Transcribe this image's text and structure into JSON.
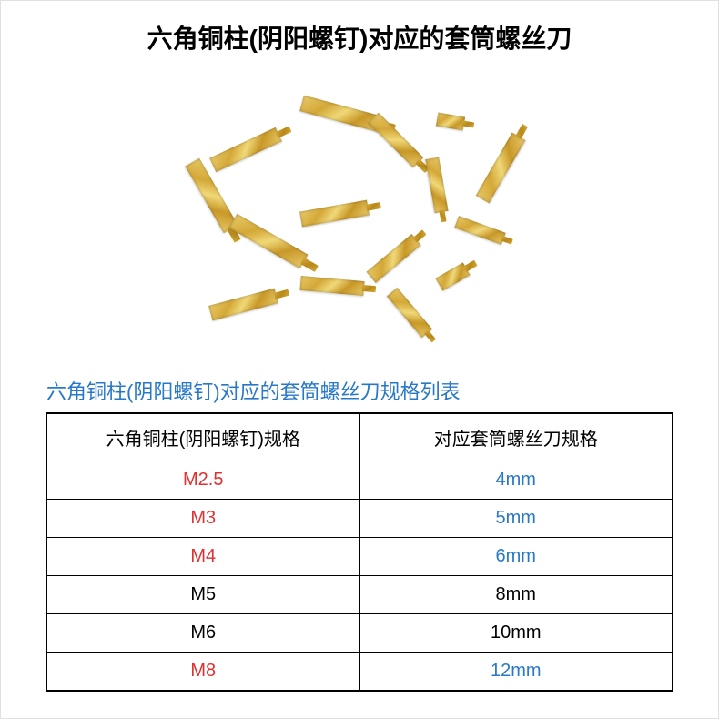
{
  "title": "六角铜柱(阴阳螺钉)对应的套筒螺丝刀",
  "subtitle": "六角铜柱(阴阳螺钉)对应的套筒螺丝刀规格列表",
  "colors": {
    "title_color": "#000000",
    "subtitle_color": "#2878c8",
    "red_text": "#e03030",
    "blue_text": "#2878c8",
    "black_text": "#000000",
    "border_color": "#000000",
    "brass_light": "#f0d878",
    "brass_dark": "#c89828"
  },
  "table": {
    "headers": [
      "六角铜柱(阴阳螺钉)规格",
      "对应套筒螺丝刀规格"
    ],
    "rows": [
      {
        "spec": "M2.5",
        "spec_color": "#e03030",
        "driver": "4mm",
        "driver_color": "#2878c8"
      },
      {
        "spec": "M3",
        "spec_color": "#e03030",
        "driver": "5mm",
        "driver_color": "#2878c8"
      },
      {
        "spec": "M4",
        "spec_color": "#e03030",
        "driver": "6mm",
        "driver_color": "#2878c8"
      },
      {
        "spec": "M5",
        "spec_color": "#000000",
        "driver": "8mm",
        "driver_color": "#000000"
      },
      {
        "spec": "M6",
        "spec_color": "#000000",
        "driver": "10mm",
        "driver_color": "#000000"
      },
      {
        "spec": "M8",
        "spec_color": "#e03030",
        "driver": "12mm",
        "driver_color": "#2878c8"
      }
    ]
  }
}
